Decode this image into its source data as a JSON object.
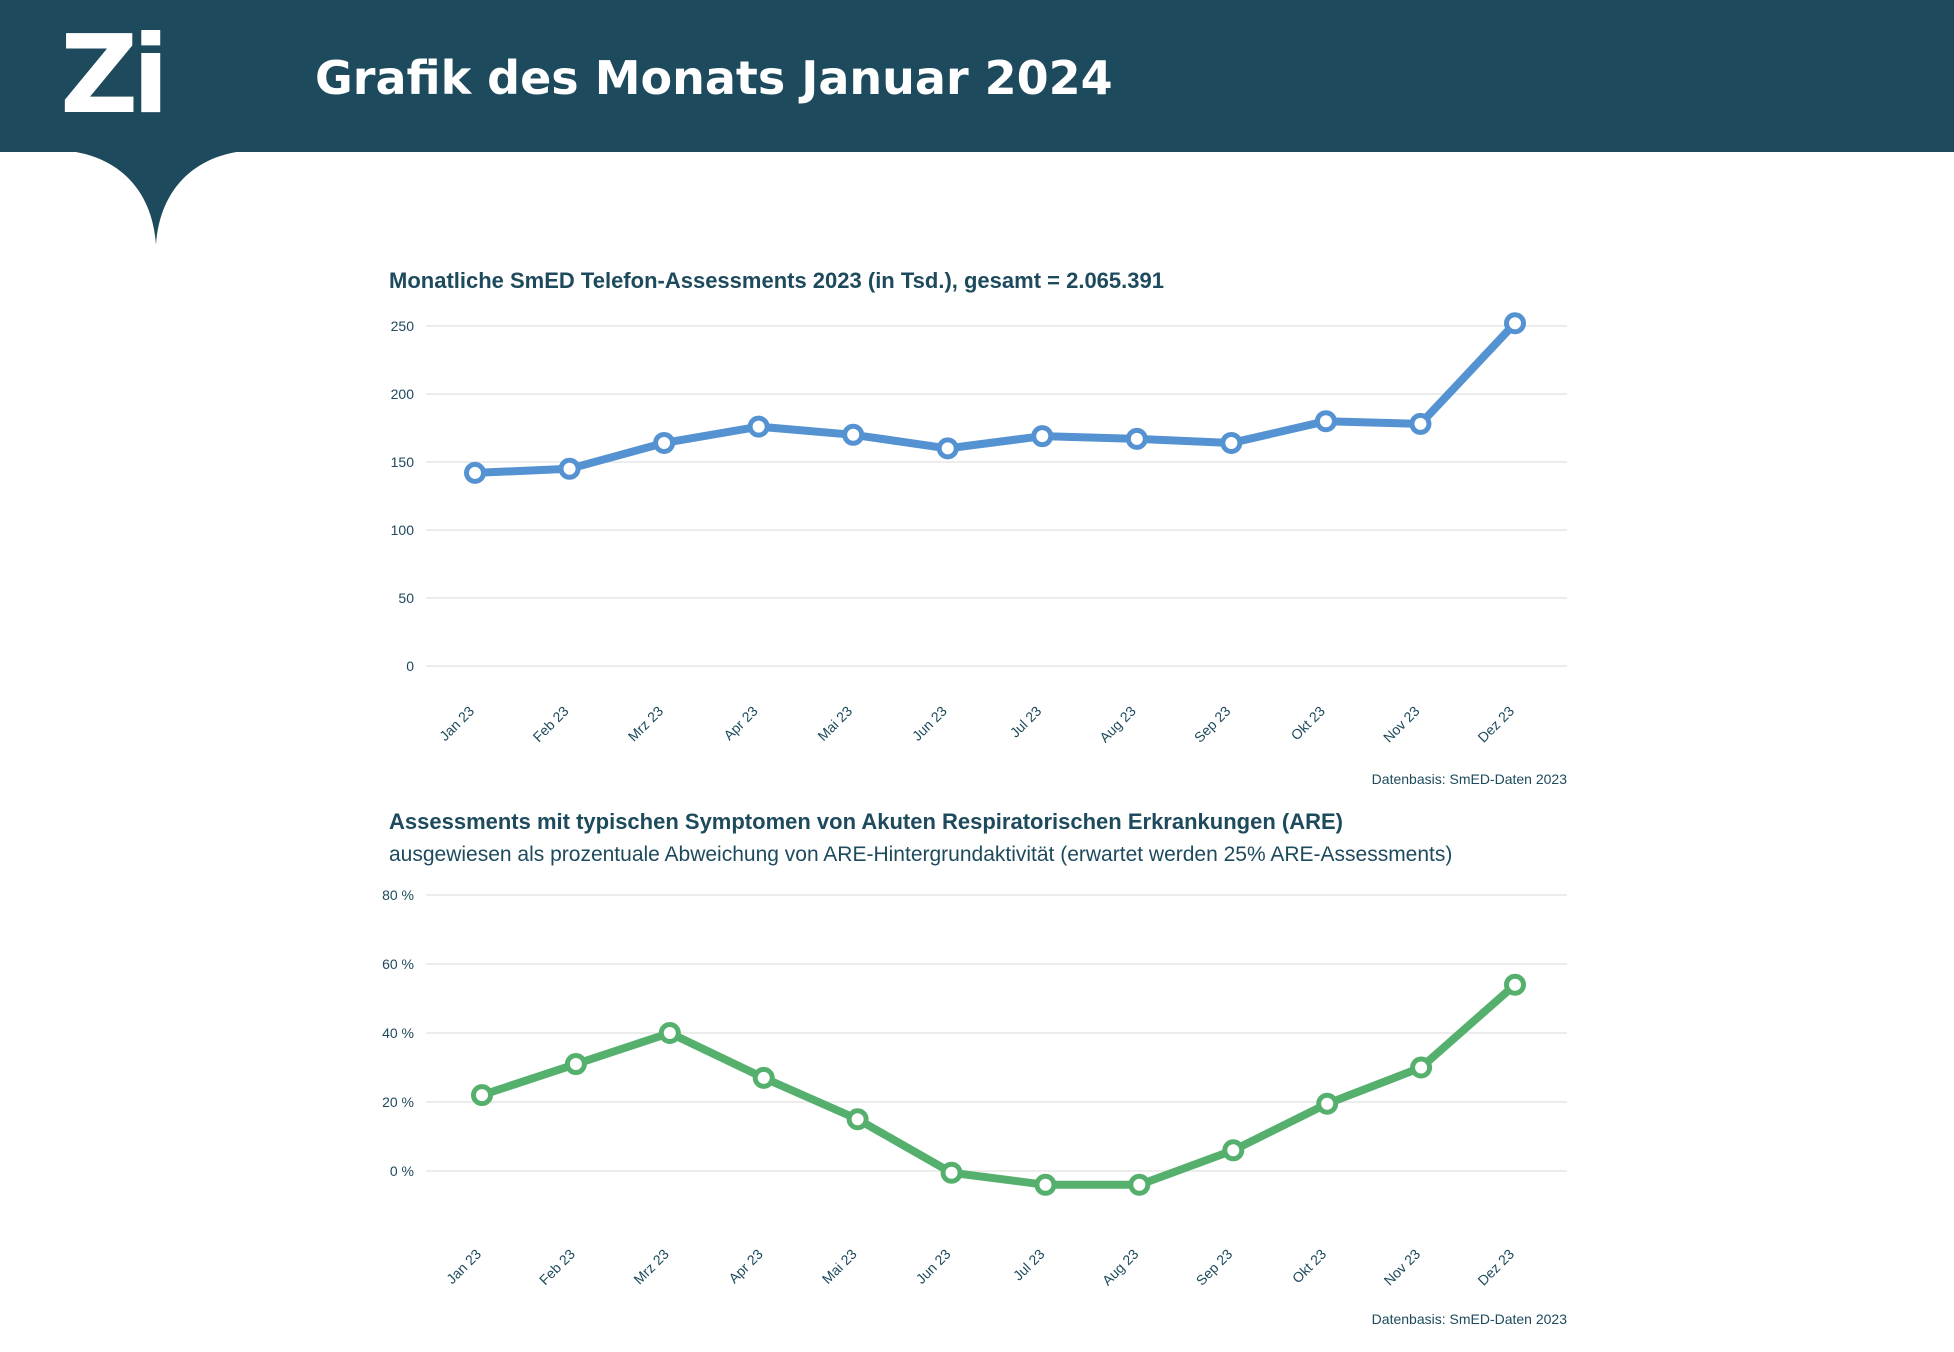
{
  "header": {
    "logo": "Zi",
    "title": "Grafik des Monats Januar 2024",
    "background_color": "#1d4a5c"
  },
  "chart_data": [
    {
      "type": "line",
      "title": "Monatliche SmED Telefon-Assessments 2023 (in Tsd.), gesamt = 2.065.391",
      "categories": [
        "Jan 23",
        "Feb 23",
        "Mrz 23",
        "Apr 23",
        "Mai 23",
        "Jun 23",
        "Jul 23",
        "Aug 23",
        "Sep 23",
        "Okt 23",
        "Nov 23",
        "Dez 23"
      ],
      "series": [
        {
          "values": [
            142,
            145,
            164,
            176,
            170,
            160,
            169,
            167,
            164,
            180,
            178,
            252
          ],
          "color": "#5592d1"
        }
      ],
      "ylim": [
        0,
        250
      ],
      "yticks": [
        0,
        50,
        100,
        150,
        200,
        250
      ],
      "ytick_labels": [
        "0",
        "50",
        "100",
        "150",
        "200",
        "250"
      ],
      "grid": true,
      "source": "Datenbasis: SmED-Daten 2023"
    },
    {
      "type": "line",
      "title": "Assessments mit typischen Symptomen von Akuten Respiratorischen Erkrankungen (ARE)",
      "subtitle": "ausgewiesen als prozentuale Abweichung von ARE-Hintergrundaktivität (erwartet werden 25% ARE-Assessments)",
      "categories": [
        "Jan 23",
        "Feb 23",
        "Mrz 23",
        "Apr 23",
        "Mai 23",
        "Jun 23",
        "Jul 23",
        "Aug 23",
        "Sep 23",
        "Okt 23",
        "Nov 23",
        "Dez 23"
      ],
      "series": [
        {
          "values": [
            22,
            31,
            40,
            27,
            15,
            -0.5,
            -4,
            -4,
            6,
            19.5,
            30,
            54
          ],
          "color": "#56b06d"
        }
      ],
      "ylim": [
        -10,
        80
      ],
      "yticks": [
        0,
        20,
        40,
        60,
        80
      ],
      "ytick_labels": [
        "0 %",
        "20 %",
        "40 %",
        "60 %",
        "80 %"
      ],
      "grid": true,
      "source": "Datenbasis: SmED-Daten 2023"
    }
  ]
}
